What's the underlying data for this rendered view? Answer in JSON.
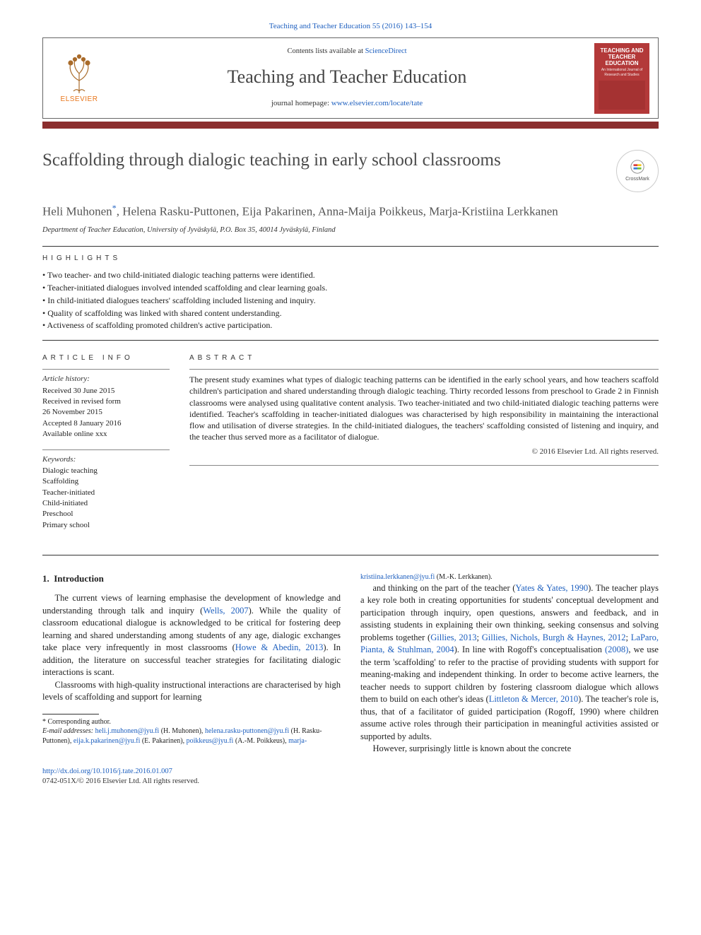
{
  "citation": "Teaching and Teacher Education 55 (2016) 143–154",
  "header": {
    "contents_prefix": "Contents lists available at ",
    "contents_link": "ScienceDirect",
    "journal_name": "Teaching and Teacher Education",
    "homepage_prefix": "journal homepage: ",
    "homepage_url": "www.elsevier.com/locate/tate",
    "elsevier_label": "ELSEVIER",
    "cover_title": "TEACHING AND TEACHER EDUCATION",
    "cover_sub": "An International Journal of Research and Studies"
  },
  "article": {
    "title": "Scaffolding through dialogic teaching in early school classrooms",
    "crossmark_label": "CrossMark",
    "authors_html": "Heli Muhonen<sup>*</sup>, Helena Rasku-Puttonen, Eija Pakarinen, Anna-Maija Poikkeus, Marja-Kristiina Lerkkanen",
    "affiliation": "Department of Teacher Education, University of Jyväskylä, P.O. Box 35, 40014 Jyväskylä, Finland"
  },
  "highlights": {
    "heading": "highlights",
    "items": [
      "Two teacher- and two child-initiated dialogic teaching patterns were identified.",
      "Teacher-initiated dialogues involved intended scaffolding and clear learning goals.",
      "In child-initiated dialogues teachers' scaffolding included listening and inquiry.",
      "Quality of scaffolding was linked with shared content understanding.",
      "Activeness of scaffolding promoted children's active participation."
    ]
  },
  "info": {
    "article_info_heading": "article info",
    "history_label": "Article history:",
    "history": [
      "Received 30 June 2015",
      "Received in revised form",
      "26 November 2015",
      "Accepted 8 January 2016",
      "Available online xxx"
    ],
    "keywords_label": "Keywords:",
    "keywords": [
      "Dialogic teaching",
      "Scaffolding",
      "Teacher-initiated",
      "Child-initiated",
      "Preschool",
      "Primary school"
    ]
  },
  "abstract": {
    "heading": "abstract",
    "text": "The present study examines what types of dialogic teaching patterns can be identified in the early school years, and how teachers scaffold children's participation and shared understanding through dialogic teaching. Thirty recorded lessons from preschool to Grade 2 in Finnish classrooms were analysed using qualitative content analysis. Two teacher-initiated and two child-initiated dialogic teaching patterns were identified. Teacher's scaffolding in teacher-initiated dialogues was characterised by high responsibility in maintaining the interactional flow and utilisation of diverse strategies. In the child-initiated dialogues, the teachers' scaffolding consisted of listening and inquiry, and the teacher thus served more as a facilitator of dialogue.",
    "copyright": "© 2016 Elsevier Ltd. All rights reserved."
  },
  "body": {
    "section_number": "1.",
    "section_title": "Introduction",
    "p1_a": "The current views of learning emphasise the development of knowledge and understanding through talk and inquiry (",
    "p1_link1": "Wells, 2007",
    "p1_b": "). While the quality of classroom educational dialogue is acknowledged to be critical for fostering deep learning and shared understanding among students of any age, dialogic exchanges take place very infrequently in most classrooms (",
    "p1_link2": "Howe & Abedin, 2013",
    "p1_c": "). In addition, the literature on successful teacher strategies for facilitating dialogic interactions is scant.",
    "p2": "Classrooms with high-quality instructional interactions are characterised by high levels of scaffolding and support for learning",
    "p3_a": "and thinking on the part of the teacher (",
    "p3_link1": "Yates & Yates, 1990",
    "p3_b": "). The teacher plays a key role both in creating opportunities for students' conceptual development and participation through inquiry, open questions, answers and feedback, and in assisting students in explaining their own thinking, seeking consensus and solving problems together (",
    "p3_link2": "Gillies, 2013",
    "p3_c": "; ",
    "p3_link3": "Gillies, Nichols, Burgh & Haynes, 2012",
    "p3_d": "; ",
    "p3_link4": "LaParo, Pianta, & Stuhlman, 2004",
    "p3_e": "). In line with Rogoff's conceptualisation ",
    "p3_link5": "(2008)",
    "p3_f": ", we use the term 'scaffolding' to refer to the practise of providing students with support for meaning-making and independent thinking. In order to become active learners, the teacher needs to support children by fostering classroom dialogue which allows them to build on each other's ideas (",
    "p3_link6": "Littleton & Mercer, 2010",
    "p3_g": "). The teacher's role is, thus, that of a facilitator of guided participation (Rogoff, 1990) where children assume active roles through their participation in meaningful activities assisted or supported by adults.",
    "p4": "However, surprisingly little is known about the concrete"
  },
  "footnotes": {
    "corr_label": "* Corresponding author.",
    "email_label": "E-mail addresses:",
    "emails": [
      {
        "addr": "heli.j.muhonen@jyu.fi",
        "who": " (H. Muhonen), "
      },
      {
        "addr": "helena.rasku-puttonen@jyu.fi",
        "who": " (H. Rasku-Puttonen), "
      },
      {
        "addr": "eija.k.pakarinen@jyu.fi",
        "who": " (E. Pakarinen), "
      },
      {
        "addr": "poikkeus@jyu.fi",
        "who": " (A.-M. Poikkeus), "
      },
      {
        "addr": "marja-kristiina.lerkkanen@jyu.fi",
        "who": " (M.-K. Lerkkanen)."
      }
    ]
  },
  "footer": {
    "doi": "http://dx.doi.org/10.1016/j.tate.2016.01.007",
    "issn_line": "0742-051X/© 2016 Elsevier Ltd. All rights reserved."
  },
  "colors": {
    "link": "#1d5fbf",
    "maroon": "#8b2e2e",
    "cover": "#b33939",
    "orange": "#e8751a"
  }
}
